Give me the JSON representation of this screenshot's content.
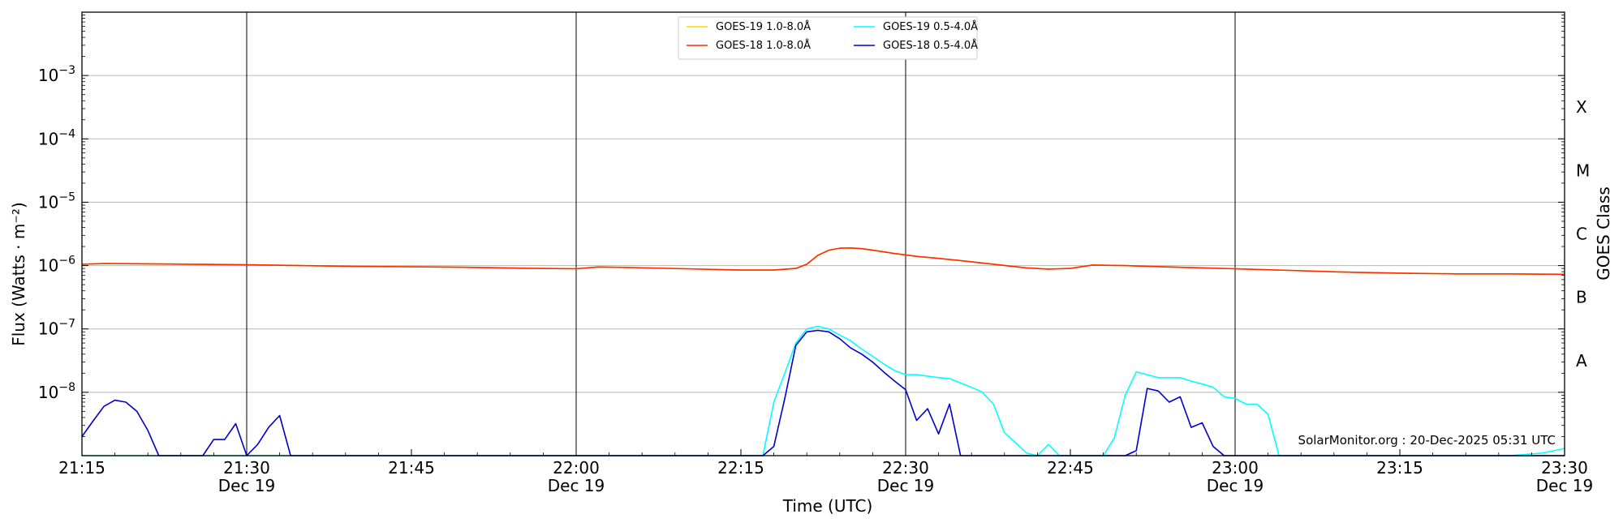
{
  "chart_data": {
    "type": "line",
    "title": "",
    "xlabel": "Time (UTC)",
    "ylabel": "Flux (Watts · m⁻²)",
    "ylabel_right": "GOES Class",
    "yscale": "log",
    "ylim": [
      1e-09,
      0.01
    ],
    "xlim_minutes": [
      0,
      135
    ],
    "x_ticks": [
      {
        "t": 0,
        "label": "21:15",
        "sub": ""
      },
      {
        "t": 15,
        "label": "21:30",
        "sub": "Dec 19"
      },
      {
        "t": 30,
        "label": "21:45",
        "sub": ""
      },
      {
        "t": 45,
        "label": "22:00",
        "sub": "Dec 19"
      },
      {
        "t": 60,
        "label": "22:15",
        "sub": ""
      },
      {
        "t": 75,
        "label": "22:30",
        "sub": "Dec 19"
      },
      {
        "t": 90,
        "label": "22:45",
        "sub": ""
      },
      {
        "t": 105,
        "label": "23:00",
        "sub": "Dec 19"
      },
      {
        "t": 120,
        "label": "23:15",
        "sub": ""
      },
      {
        "t": 135,
        "label": "23:30",
        "sub": "Dec 19"
      }
    ],
    "y_ticks": [
      {
        "exp": -8,
        "label": "10",
        "sup": "−8"
      },
      {
        "exp": -7,
        "label": "10",
        "sup": "−7"
      },
      {
        "exp": -6,
        "label": "10",
        "sup": "−6"
      },
      {
        "exp": -5,
        "label": "10",
        "sup": "−5"
      },
      {
        "exp": -4,
        "label": "10",
        "sup": "−4"
      },
      {
        "exp": -3,
        "label": "10",
        "sup": "−3"
      }
    ],
    "goes_classes": [
      {
        "label": "A",
        "exp": -7.5
      },
      {
        "label": "B",
        "exp": -6.5
      },
      {
        "label": "C",
        "exp": -5.5
      },
      {
        "label": "M",
        "exp": -4.5
      },
      {
        "label": "X",
        "exp": -3.5
      }
    ],
    "grid": true,
    "legend_position": "top-center",
    "vertical_lines": [
      15,
      45,
      75,
      105
    ],
    "series": [
      {
        "name": "GOES-19 1.0-8.0Å",
        "color": "#ffd700",
        "x": [
          0,
          2,
          5,
          10,
          15,
          20,
          25,
          30,
          35,
          40,
          45,
          47,
          50,
          55,
          60,
          63,
          65,
          66,
          67,
          68,
          69,
          70,
          71,
          72,
          74,
          76,
          78,
          80,
          83,
          86,
          88,
          89,
          90,
          92,
          95,
          100,
          105,
          110,
          115,
          120,
          125,
          130,
          135
        ],
        "y": [
          1.05e-06,
          1.08e-06,
          1.07e-06,
          1.05e-06,
          1.03e-06,
          1e-06,
          9.7e-07,
          9.6e-07,
          9.4e-07,
          9.1e-07,
          8.9e-07,
          9.5e-07,
          9.3e-07,
          8.9e-07,
          8.5e-07,
          8.5e-07,
          9e-07,
          1.05e-06,
          1.45e-06,
          1.75e-06,
          1.88e-06,
          1.9e-06,
          1.85e-06,
          1.75e-06,
          1.55e-06,
          1.4e-06,
          1.3e-06,
          1.2e-06,
          1.05e-06,
          9.2e-07,
          8.8e-07,
          8.9e-07,
          9e-07,
          1.02e-06,
          1e-06,
          9.4e-07,
          8.9e-07,
          8.4e-07,
          7.9e-07,
          7.6e-07,
          7.4e-07,
          7.4e-07,
          7.3e-07
        ]
      },
      {
        "name": "GOES-18 1.0-8.0Å",
        "color": "#ff2a00",
        "x": [
          0,
          2,
          5,
          10,
          15,
          20,
          25,
          30,
          35,
          40,
          45,
          47,
          50,
          55,
          60,
          63,
          65,
          66,
          67,
          68,
          69,
          70,
          71,
          72,
          74,
          76,
          78,
          80,
          83,
          86,
          88,
          89,
          90,
          92,
          95,
          100,
          105,
          110,
          115,
          120,
          125,
          130,
          135
        ],
        "y": [
          1.05e-06,
          1.08e-06,
          1.07e-06,
          1.05e-06,
          1.03e-06,
          1e-06,
          9.7e-07,
          9.6e-07,
          9.4e-07,
          9.1e-07,
          8.9e-07,
          9.5e-07,
          9.3e-07,
          8.9e-07,
          8.5e-07,
          8.5e-07,
          9e-07,
          1.05e-06,
          1.45e-06,
          1.75e-06,
          1.88e-06,
          1.9e-06,
          1.85e-06,
          1.75e-06,
          1.55e-06,
          1.4e-06,
          1.3e-06,
          1.2e-06,
          1.05e-06,
          9.2e-07,
          8.8e-07,
          8.9e-07,
          9e-07,
          1.02e-06,
          1e-06,
          9.4e-07,
          8.9e-07,
          8.4e-07,
          7.9e-07,
          7.6e-07,
          7.4e-07,
          7.4e-07,
          7.3e-07
        ]
      },
      {
        "name": "GOES-19 0.5-4.0Å",
        "color": "#00ffff",
        "x": [
          0,
          62,
          63,
          64,
          65,
          66,
          67,
          68,
          69,
          70,
          71,
          72,
          73,
          74,
          75,
          76,
          77,
          78,
          79,
          80,
          81,
          82,
          83,
          84,
          85,
          86,
          87,
          88,
          89,
          90,
          91,
          92,
          93,
          94,
          95,
          96,
          97,
          98,
          99,
          100,
          101,
          102,
          103,
          104,
          105,
          106,
          107,
          108,
          109,
          110,
          115,
          120,
          125,
          130,
          133,
          135
        ],
        "y": [
          1e-09,
          1e-09,
          7e-09,
          2e-08,
          6e-08,
          1e-07,
          1.1e-07,
          1e-07,
          8e-08,
          6.5e-08,
          4.8e-08,
          3.7e-08,
          2.8e-08,
          2.2e-08,
          1.9e-08,
          1.9e-08,
          1.8e-08,
          1.7e-08,
          1.65e-08,
          1.4e-08,
          1.2e-08,
          1e-08,
          6.5e-09,
          2.3e-09,
          1.6e-09,
          1.1e-09,
          1e-09,
          1.5e-09,
          1e-09,
          1e-09,
          1e-09,
          1e-09,
          1e-09,
          1.9e-09,
          9e-09,
          2.1e-08,
          1.9e-08,
          1.7e-08,
          1.7e-08,
          1.7e-08,
          1.5e-08,
          1.35e-08,
          1.2e-08,
          8.5e-09,
          8e-09,
          6.5e-09,
          6.5e-09,
          4.5e-09,
          1e-09,
          1e-09,
          1e-09,
          1e-09,
          1e-09,
          1e-09,
          1.1e-09,
          1.3e-09
        ]
      },
      {
        "name": "GOES-18 0.5-4.0Å",
        "color": "#0000cc",
        "x": [
          0,
          1,
          2,
          3,
          4,
          5,
          6,
          7,
          8,
          9,
          10,
          11,
          12,
          13,
          14,
          15,
          16,
          17,
          18,
          19,
          20,
          62,
          63,
          64,
          65,
          66,
          67,
          68,
          69,
          70,
          71,
          72,
          73,
          74,
          75,
          76,
          77,
          78,
          79,
          80,
          81,
          82,
          83,
          84,
          85,
          86,
          87,
          88,
          89,
          90,
          91,
          92,
          93,
          94,
          95,
          96,
          97,
          98,
          99,
          100,
          101,
          102,
          103,
          104,
          105,
          106,
          107,
          108,
          109,
          110,
          120,
          135
        ],
        "y": [
          2e-09,
          3.5e-09,
          6e-09,
          7.5e-09,
          7e-09,
          5e-09,
          2.5e-09,
          1e-09,
          1e-09,
          1e-09,
          1e-09,
          1e-09,
          1.8e-09,
          1.8e-09,
          3.2e-09,
          1e-09,
          1.5e-09,
          2.8e-09,
          4.3e-09,
          1e-09,
          1e-09,
          1e-09,
          1.4e-09,
          8e-09,
          5.5e-08,
          9e-08,
          9.5e-08,
          9e-08,
          7e-08,
          5e-08,
          4e-08,
          3e-08,
          2.1e-08,
          1.5e-08,
          1.1e-08,
          3.6e-09,
          5.5e-09,
          2.2e-09,
          6.5e-09,
          1e-09,
          1e-09,
          1e-09,
          1e-09,
          1e-09,
          1e-09,
          1e-09,
          1e-09,
          1e-09,
          1e-09,
          1e-09,
          1e-09,
          1e-09,
          1e-09,
          1e-09,
          1e-09,
          1.2e-09,
          1.15e-08,
          1.05e-08,
          7e-09,
          8.5e-09,
          2.8e-09,
          3.3e-09,
          1.4e-09,
          1e-09,
          1e-09,
          1e-09,
          1e-09,
          1e-09,
          1e-09,
          1e-09,
          1e-09,
          1e-09
        ]
      }
    ]
  },
  "footer": {
    "credit": "SolarMonitor.org : 20-Dec-2025 05:31 UTC"
  }
}
